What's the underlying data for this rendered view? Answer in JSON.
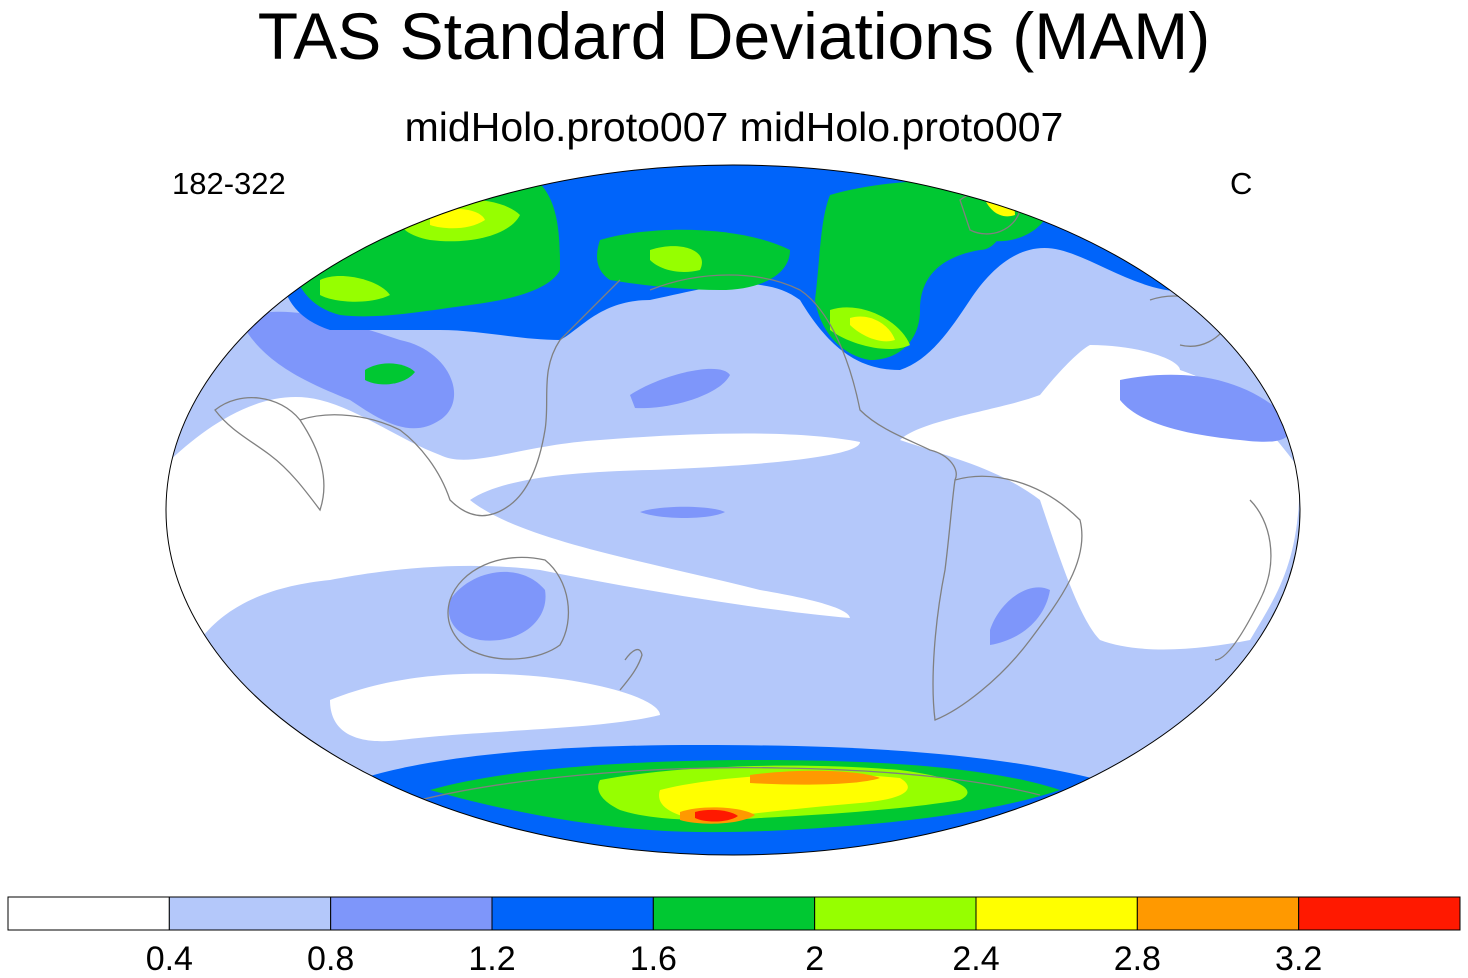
{
  "title": "TAS Standard Deviations (MAM)",
  "subtitle": "midHolo.proto007  midHolo.proto007",
  "left_label": "182-322",
  "right_label": "C",
  "colorbar": {
    "levels": [
      "0.4",
      "0.8",
      "1.2",
      "1.6",
      "2",
      "2.4",
      "2.8",
      "3.2"
    ],
    "colors": [
      "#ffffff",
      "#b4c8fa",
      "#7e96fa",
      "#0064fa",
      "#00c832",
      "#96ff00",
      "#ffff00",
      "#ff9900",
      "#ff1900"
    ]
  },
  "map": {
    "projection": "robinson",
    "central_longitude": 180,
    "land_outline_color": "#808080"
  }
}
